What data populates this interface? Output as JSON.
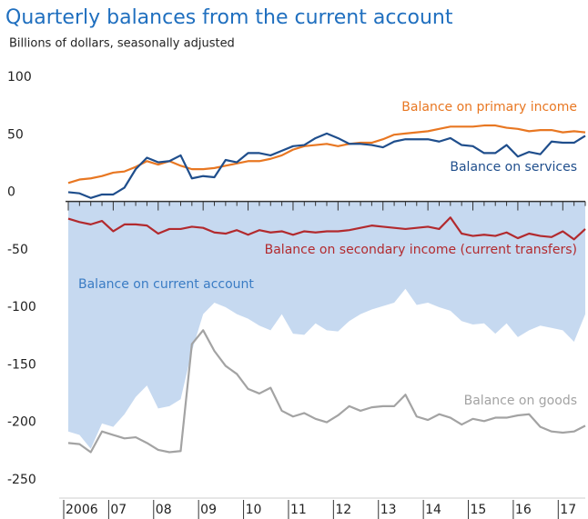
{
  "chart_data": {
    "type": "line",
    "title": "Quarterly balances from the current account",
    "subtitle": "Billions of dollars, seasonally adjusted",
    "categories": [
      "2006",
      null,
      null,
      null,
      "07",
      null,
      null,
      null,
      "08",
      null,
      null,
      null,
      "09",
      null,
      null,
      null,
      "10",
      null,
      null,
      null,
      "11",
      null,
      null,
      null,
      "12",
      null,
      null,
      null,
      "13",
      null,
      null,
      null,
      "14",
      null,
      null,
      null,
      "15",
      null,
      null,
      null,
      "16",
      null,
      null,
      null,
      "17",
      null,
      null
    ],
    "ylim": [
      -250,
      100
    ],
    "yticks": [
      -250,
      -200,
      -150,
      -100,
      -50,
      0,
      50,
      100
    ],
    "series": [
      {
        "name": "Balance on current account",
        "color": "#3a7cc4",
        "fill": "#c6d9f0",
        "values": [
          -200,
          -203,
          -215,
          -193,
          -196,
          -185,
          -170,
          -160,
          -180,
          -178,
          -172,
          -130,
          -98,
          -88,
          -92,
          -98,
          -102,
          -108,
          -112,
          -98,
          -115,
          -116,
          -106,
          -112,
          -113,
          -104,
          -98,
          -94,
          -91,
          -88,
          -76,
          -90,
          -88,
          -92,
          -95,
          -104,
          -107,
          -106,
          -115,
          -106,
          -118,
          -112,
          -108,
          -110,
          -112,
          -122,
          -98
        ]
      },
      {
        "name": "Balance on primary income",
        "color": "#e87722",
        "values": [
          16,
          19,
          20,
          22,
          25,
          26,
          30,
          35,
          32,
          35,
          31,
          28,
          28,
          29,
          31,
          33,
          35,
          35,
          37,
          40,
          45,
          48,
          49,
          50,
          48,
          50,
          51,
          51,
          54,
          58,
          59,
          60,
          61,
          63,
          65,
          65,
          65,
          66,
          66,
          64,
          63,
          61,
          62,
          62,
          60,
          61,
          60
        ]
      },
      {
        "name": "Balance on services",
        "color": "#1f4e8c",
        "values": [
          8,
          7,
          3,
          6,
          6,
          12,
          28,
          38,
          34,
          35,
          40,
          20,
          22,
          21,
          36,
          34,
          42,
          42,
          40,
          44,
          48,
          49,
          55,
          59,
          55,
          50,
          50,
          49,
          47,
          52,
          54,
          54,
          54,
          52,
          55,
          49,
          48,
          42,
          42,
          49,
          39,
          43,
          41,
          52,
          51,
          51,
          57
        ]
      },
      {
        "name": "Balance on secondary income (current transfers)",
        "color": "#b22a2e",
        "values": [
          -15,
          -18,
          -20,
          -17,
          -26,
          -20,
          -20,
          -21,
          -28,
          -24,
          -24,
          -22,
          -23,
          -27,
          -28,
          -25,
          -29,
          -25,
          -27,
          -26,
          -29,
          -26,
          -27,
          -26,
          -26,
          -25,
          -23,
          -21,
          -22,
          -23,
          -24,
          -23,
          -22,
          -24,
          -14,
          -28,
          -30,
          -29,
          -30,
          -27,
          -32,
          -28,
          -30,
          -31,
          -26,
          -33,
          -24
        ]
      },
      {
        "name": "Balance on goods",
        "color": "#a3a3a3",
        "values": [
          -210,
          -211,
          -218,
          -200,
          -203,
          -206,
          -205,
          -210,
          -216,
          -218,
          -217,
          -124,
          -112,
          -130,
          -143,
          -150,
          -163,
          -167,
          -162,
          -182,
          -187,
          -184,
          -189,
          -192,
          -186,
          -178,
          -182,
          -179,
          -178,
          -178,
          -168,
          -187,
          -190,
          -185,
          -188,
          -194,
          -189,
          -191,
          -188,
          -188,
          -186,
          -185,
          -196,
          -200,
          -201,
          -200,
          -195
        ]
      }
    ]
  }
}
